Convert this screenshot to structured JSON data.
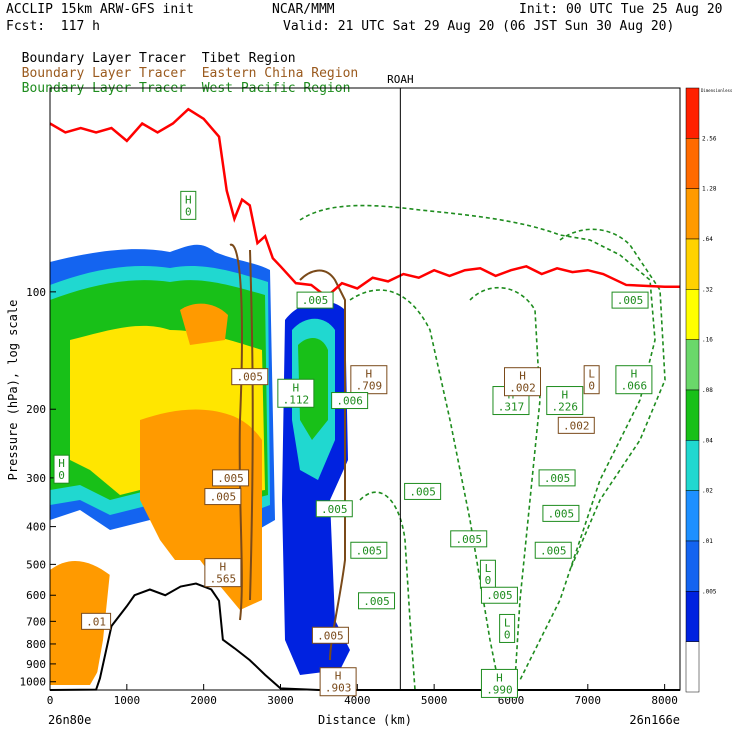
{
  "header": {
    "model": "ACCLIP 15km ARW-GFS init",
    "org": "NCAR/MMM",
    "init": "Init: 00 UTC Tue 25 Aug 20",
    "fcst": "Fcst:  117 h",
    "valid": "Valid: 21 UTC Sat 29 Aug 20 (06 JST Sun 30 Aug 20)"
  },
  "tracers": [
    {
      "name": "Boundary Layer Tracer",
      "region": "Tibet Region",
      "color": "#000000"
    },
    {
      "name": "Boundary Layer Tracer",
      "region": "Eastern China Region",
      "color": "#9a5a1e"
    },
    {
      "name": "Boundary Layer Tracer",
      "region": "West Pacific Region",
      "color": "#1e8c1e"
    }
  ],
  "colors": {
    "tropopause": "#ff0000",
    "eastern_china": "#7a4a1a",
    "west_pacific": "#1e8c1e",
    "terrain": "#000000"
  },
  "chart_data": {
    "type": "heatmap",
    "ylabel": "Pressure (hPa), log scale",
    "xlabel": "Distance (km)",
    "x_start_label": "26n80e",
    "x_end_label": "26n166e",
    "xlim": [
      0,
      8200
    ],
    "ylim": [
      1050,
      30
    ],
    "y_scale": "log",
    "x_ticks": [
      0,
      1000,
      2000,
      3000,
      4000,
      5000,
      6000,
      7000,
      8000
    ],
    "y_ticks": [
      100,
      200,
      300,
      400,
      500,
      600,
      700,
      800,
      900,
      1000
    ],
    "vertical_marker": {
      "x": 4560,
      "label": "ROAH"
    },
    "colorbar": {
      "unit_label": "Dimensionless",
      "levels": [
        "2.56",
        "1.28",
        ".64",
        ".32",
        ".16",
        ".08",
        ".04",
        ".02",
        ".01",
        ".005"
      ],
      "colors": [
        "#ff2000",
        "#ff6a00",
        "#ff9a00",
        "#ffd200",
        "#ffff00",
        "#6ad86a",
        "#18c018",
        "#20d8d0",
        "#1e90ff",
        "#1464f0",
        "#0022e0",
        "#ffffff"
      ]
    },
    "tropopause_line": [
      [
        0,
        37
      ],
      [
        200,
        39
      ],
      [
        400,
        38
      ],
      [
        600,
        39
      ],
      [
        800,
        38
      ],
      [
        1000,
        41
      ],
      [
        1200,
        37
      ],
      [
        1400,
        39
      ],
      [
        1600,
        37
      ],
      [
        1800,
        34
      ],
      [
        2000,
        36
      ],
      [
        2200,
        40
      ],
      [
        2300,
        55
      ],
      [
        2400,
        65
      ],
      [
        2500,
        58
      ],
      [
        2600,
        60
      ],
      [
        2700,
        75
      ],
      [
        2800,
        72
      ],
      [
        2900,
        82
      ],
      [
        3000,
        86
      ],
      [
        3200,
        95
      ],
      [
        3400,
        96
      ],
      [
        3600,
        103
      ],
      [
        3800,
        95
      ],
      [
        4000,
        98
      ],
      [
        4200,
        92
      ],
      [
        4400,
        94
      ],
      [
        4600,
        90
      ],
      [
        4800,
        92
      ],
      [
        5000,
        88
      ],
      [
        5200,
        91
      ],
      [
        5400,
        88
      ],
      [
        5600,
        87
      ],
      [
        5800,
        91
      ],
      [
        6000,
        88
      ],
      [
        6200,
        86
      ],
      [
        6400,
        90
      ],
      [
        6600,
        87
      ],
      [
        6800,
        89
      ],
      [
        7000,
        88
      ],
      [
        7200,
        90
      ],
      [
        7500,
        96
      ],
      [
        8000,
        97
      ],
      [
        8200,
        97
      ]
    ],
    "terrain_surface": [
      [
        0,
        1050
      ],
      [
        600,
        1048
      ],
      [
        650,
        980
      ],
      [
        800,
        720
      ],
      [
        1000,
        640
      ],
      [
        1100,
        600
      ],
      [
        1300,
        580
      ],
      [
        1500,
        600
      ],
      [
        1700,
        570
      ],
      [
        1900,
        560
      ],
      [
        2100,
        580
      ],
      [
        2200,
        620
      ],
      [
        2250,
        780
      ],
      [
        2400,
        820
      ],
      [
        2600,
        880
      ],
      [
        2800,
        960
      ],
      [
        3000,
        1040
      ],
      [
        3500,
        1060
      ],
      [
        4500,
        1060
      ],
      [
        8200,
        1060
      ]
    ],
    "labels": [
      {
        "text": "H",
        "value": "0",
        "x": 1800,
        "y": 60,
        "series": "west_pacific"
      },
      {
        "text": "H",
        "value": "0",
        "x": 150,
        "y": 285,
        "series": "west_pacific"
      },
      {
        "text": "H",
        "value": ".565",
        "x": 2250,
        "y": 525,
        "series": "eastern_china"
      },
      {
        "text": "",
        "value": ".01",
        "x": 600,
        "y": 700,
        "series": "eastern_china"
      },
      {
        "text": "",
        "value": ".005",
        "x": 2350,
        "y": 300,
        "series": "eastern_china"
      },
      {
        "text": "",
        "value": ".005",
        "x": 2250,
        "y": 335,
        "series": "eastern_china"
      },
      {
        "text": "",
        "value": ".005",
        "x": 2600,
        "y": 165,
        "series": "eastern_china"
      },
      {
        "text": "",
        "value": ".005",
        "x": 3450,
        "y": 105,
        "series": "west_pacific"
      },
      {
        "text": "H",
        "value": ".709",
        "x": 4150,
        "y": 168,
        "series": "eastern_china"
      },
      {
        "text": "H",
        "value": ".112",
        "x": 3200,
        "y": 182,
        "series": "west_pacific"
      },
      {
        "text": "",
        "value": ".006",
        "x": 3900,
        "y": 190,
        "series": "west_pacific"
      },
      {
        "text": "",
        "value": ".005",
        "x": 3700,
        "y": 360,
        "series": "west_pacific"
      },
      {
        "text": "",
        "value": ".005",
        "x": 4150,
        "y": 460,
        "series": "west_pacific"
      },
      {
        "text": "",
        "value": ".005",
        "x": 4250,
        "y": 620,
        "series": "west_pacific"
      },
      {
        "text": "",
        "value": ".005",
        "x": 3650,
        "y": 760,
        "series": "eastern_china"
      },
      {
        "text": "H",
        "value": ".903",
        "x": 3750,
        "y": 1000,
        "series": "eastern_china"
      },
      {
        "text": "",
        "value": ".005",
        "x": 4850,
        "y": 325,
        "series": "west_pacific"
      },
      {
        "text": "",
        "value": ".005",
        "x": 5450,
        "y": 430,
        "series": "west_pacific"
      },
      {
        "text": "L",
        "value": "0",
        "x": 5700,
        "y": 530,
        "series": "west_pacific"
      },
      {
        "text": "",
        "value": ".005",
        "x": 5850,
        "y": 600,
        "series": "west_pacific"
      },
      {
        "text": "H",
        "value": ".317",
        "x": 6000,
        "y": 190,
        "series": "west_pacific"
      },
      {
        "text": "H",
        "value": ".002",
        "x": 6150,
        "y": 170,
        "series": "eastern_china"
      },
      {
        "text": "H",
        "value": ".226",
        "x": 6700,
        "y": 190,
        "series": "west_pacific"
      },
      {
        "text": "",
        "value": ".002",
        "x": 6850,
        "y": 220,
        "series": "eastern_china"
      },
      {
        "text": "L",
        "value": "0",
        "x": 7050,
        "y": 168,
        "series": "eastern_china"
      },
      {
        "text": "H",
        "value": ".066",
        "x": 7600,
        "y": 168,
        "series": "west_pacific"
      },
      {
        "text": "",
        "value": ".005",
        "x": 7550,
        "y": 105,
        "series": "west_pacific"
      },
      {
        "text": "",
        "value": ".005",
        "x": 6600,
        "y": 300,
        "series": "west_pacific"
      },
      {
        "text": "",
        "value": ".005",
        "x": 6650,
        "y": 370,
        "series": "west_pacific"
      },
      {
        "text": "",
        "value": ".005",
        "x": 6550,
        "y": 460,
        "series": "west_pacific"
      },
      {
        "text": "L",
        "value": "0",
        "x": 5950,
        "y": 730,
        "series": "west_pacific"
      },
      {
        "text": "H",
        "value": ".990",
        "x": 5850,
        "y": 1010,
        "series": "west_pacific"
      }
    ]
  }
}
